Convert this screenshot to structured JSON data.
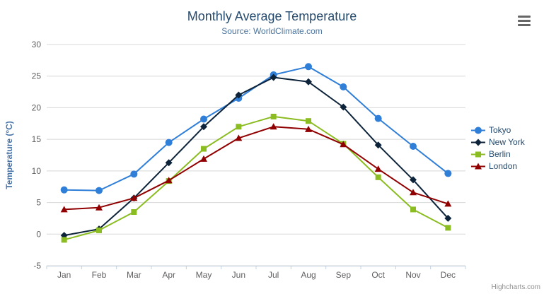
{
  "chart": {
    "credits_label": "Highcharts.com"
  },
  "icons": {
    "export_menu": "hamburger-icon"
  },
  "chart_data": {
    "type": "line",
    "title": "Monthly Average Temperature",
    "subtitle": "Source: WorldClimate.com",
    "xlabel": "",
    "ylabel": "Temperature (°C)",
    "categories": [
      "Jan",
      "Feb",
      "Mar",
      "Apr",
      "May",
      "Jun",
      "Jul",
      "Aug",
      "Sep",
      "Oct",
      "Nov",
      "Dec"
    ],
    "ylim": [
      -5,
      30
    ],
    "ytick_step": 5,
    "grid": true,
    "legend_position": "right",
    "series": [
      {
        "name": "Tokyo",
        "color": "#2f7ed8",
        "marker": "circle",
        "values": [
          7.0,
          6.9,
          9.5,
          14.5,
          18.2,
          21.5,
          25.2,
          26.5,
          23.3,
          18.3,
          13.9,
          9.6
        ]
      },
      {
        "name": "New York",
        "color": "#0d233a",
        "marker": "diamond",
        "values": [
          -0.2,
          0.8,
          5.7,
          11.3,
          17.0,
          22.0,
          24.8,
          24.1,
          20.1,
          14.1,
          8.6,
          2.5
        ]
      },
      {
        "name": "Berlin",
        "color": "#8bbc21",
        "marker": "square",
        "values": [
          -0.9,
          0.6,
          3.5,
          8.4,
          13.5,
          17.0,
          18.6,
          17.9,
          14.3,
          9.0,
          3.9,
          1.0
        ]
      },
      {
        "name": "London",
        "color": "#910000",
        "marker": "triangle",
        "values": [
          3.9,
          4.2,
          5.7,
          8.5,
          11.9,
          15.2,
          17.0,
          16.6,
          14.2,
          10.3,
          6.6,
          4.8
        ]
      }
    ]
  }
}
